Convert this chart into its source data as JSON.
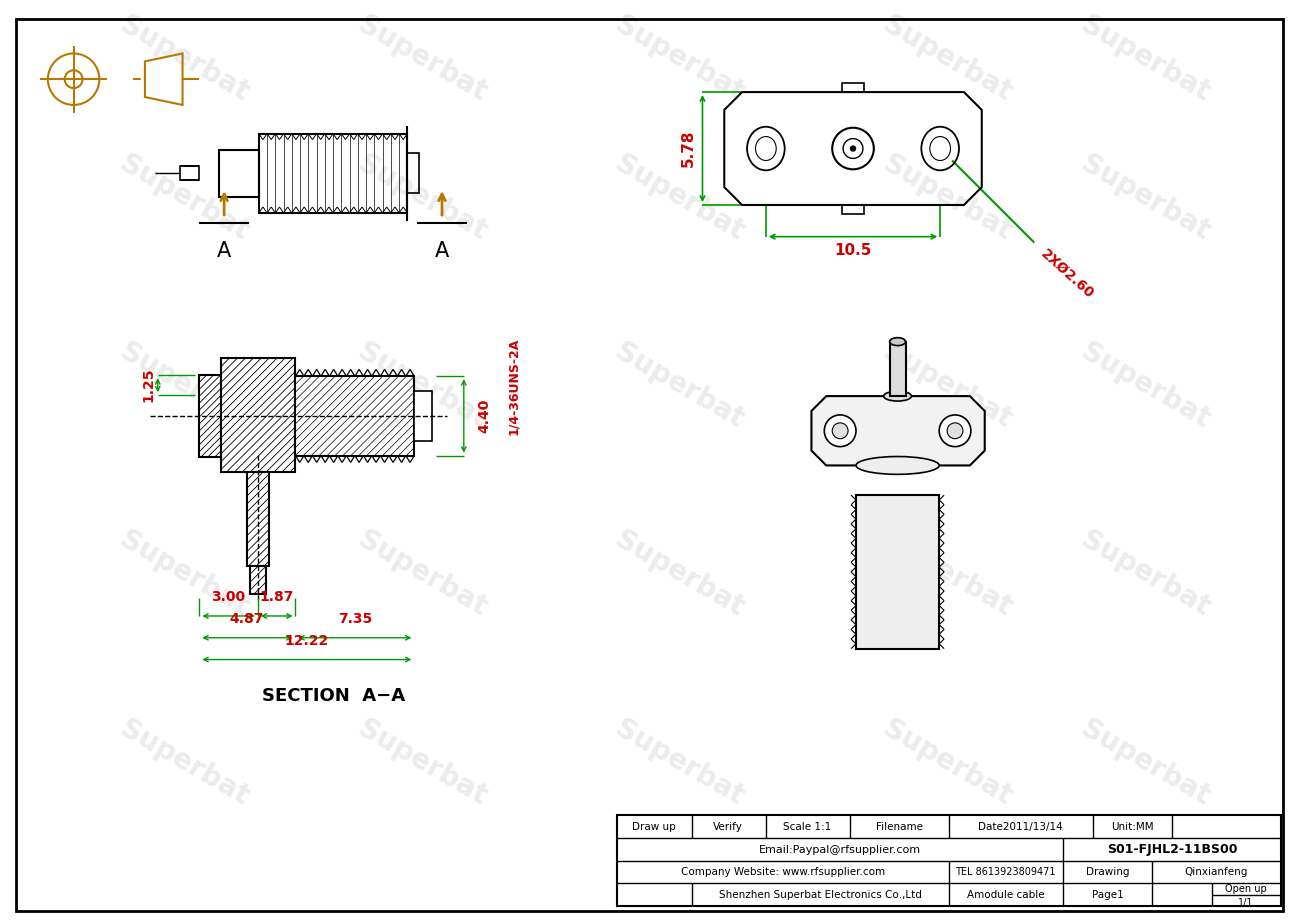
{
  "bg_color": "#ffffff",
  "green_color": "#009900",
  "red_color": "#cc0000",
  "orange_color": "#b87800",
  "dim_5_78": "5.78",
  "dim_10_5": "10.5",
  "dim_2x_phi": "2XØ2.60",
  "dim_1_25": "1.25",
  "dim_4_40": "4.40",
  "dim_thread": "1/4-36UNS-2A",
  "dim_3_00": "3.00",
  "dim_1_87": "1.87",
  "dim_4_87": "4.87",
  "dim_7_35": "7.35",
  "dim_12_22": "12.22",
  "section_label": "SECTION  A−A",
  "label_A": "A",
  "table_draw": "Draw up",
  "table_verify": "Verify",
  "table_scale": "Scale 1:1",
  "table_filename": "Filename",
  "table_date": "Date2011/13/14",
  "table_unit": "Unit:MM",
  "table_email": "Email:Paypal@rfsupplier.com",
  "table_partno": "S01-FJHL2-11BS00",
  "table_company_web": "Company Website: www.rfsupplier.com",
  "table_tel": "TEL 8613923809471",
  "table_drawing": "Drawing",
  "table_drafter": "Qinxianfeng",
  "table_company": "Shenzhen Superbat Electronics Co.,Ltd",
  "table_amodule": "Amodule cable",
  "table_page": "Page1",
  "table_openup": "Open up",
  "table_fraction": "1/1"
}
